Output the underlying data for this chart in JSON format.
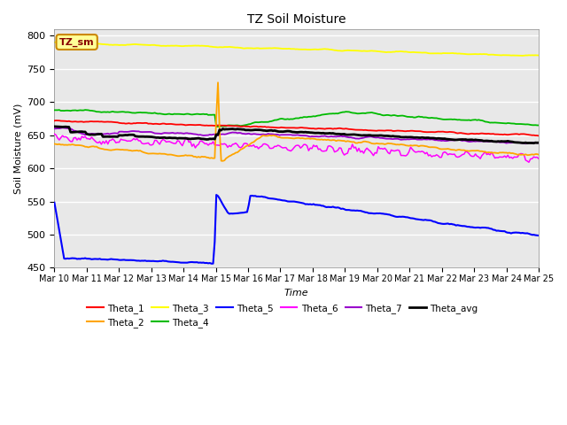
{
  "title": "TZ Soil Moisture",
  "xlabel": "Time",
  "ylabel": "Soil Moisture (mV)",
  "ylim": [
    450,
    810
  ],
  "yticks": [
    450,
    500,
    550,
    600,
    650,
    700,
    750,
    800
  ],
  "x_labels": [
    "Mar 10",
    "Mar 11",
    "Mar 12",
    "Mar 13",
    "Mar 14",
    "Mar 15",
    "Mar 16",
    "Mar 17",
    "Mar 18",
    "Mar 19",
    "Mar 20",
    "Mar 21",
    "Mar 22",
    "Mar 23",
    "Mar 24",
    "Mar 25"
  ],
  "colors": {
    "Theta_1": "#FF0000",
    "Theta_2": "#FFA500",
    "Theta_3": "#FFFF00",
    "Theta_4": "#00BB00",
    "Theta_5": "#0000FF",
    "Theta_6": "#FF00FF",
    "Theta_7": "#9900CC",
    "Theta_avg": "#000000"
  },
  "bg_color": "#E8E8E8",
  "label_box_color": "#FFFF99",
  "label_box_edge": "#CC8800",
  "label_text": "TZ_sm",
  "label_text_color": "#880000"
}
